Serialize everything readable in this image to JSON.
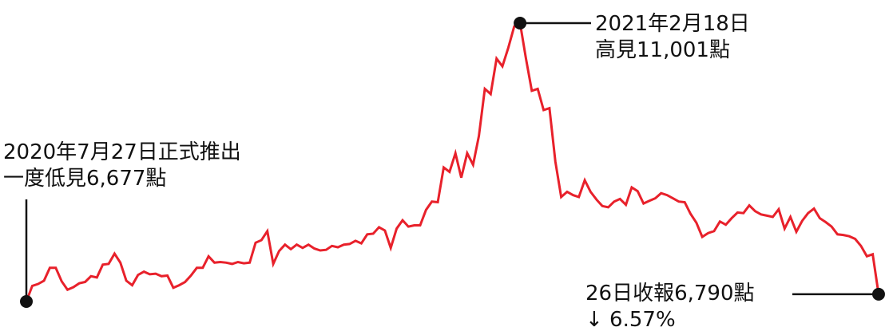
{
  "chart_data": {
    "type": "line",
    "annotations": {
      "start": {
        "line1": "2020年7月27日正式推出",
        "line2": "一度低見6,677點"
      },
      "peak": {
        "line1": "2021年2月18日",
        "line2": "高見11,001點"
      },
      "end": {
        "line1": "26日收報6,790點",
        "line2": "↓ 6.57%"
      }
    },
    "start_value": 6677,
    "peak_value": 11001,
    "end_value": 6790,
    "change_pct": -6.57,
    "ylim": [
      6600,
      11100
    ],
    "grid": false,
    "line_color": "#e8212b",
    "values": [
      6677,
      6920,
      6950,
      7000,
      7200,
      7200,
      6990,
      6860,
      6900,
      6960,
      6980,
      7070,
      7050,
      7250,
      7260,
      7420,
      7280,
      7000,
      6930,
      7090,
      7140,
      7100,
      7110,
      7070,
      7080,
      6890,
      6930,
      6980,
      7080,
      7200,
      7200,
      7380,
      7280,
      7290,
      7280,
      7260,
      7290,
      7270,
      7280,
      7590,
      7630,
      7770,
      7260,
      7460,
      7560,
      7490,
      7560,
      7510,
      7560,
      7500,
      7470,
      7480,
      7540,
      7520,
      7560,
      7570,
      7620,
      7580,
      7720,
      7730,
      7830,
      7780,
      7510,
      7810,
      7940,
      7840,
      7860,
      7860,
      8100,
      8230,
      8220,
      8760,
      8690,
      8980,
      8600,
      8980,
      8800,
      9250,
      9980,
      9900,
      10450,
      10330,
      10620,
      10950,
      11001,
      10450,
      9950,
      9980,
      9650,
      9680,
      8850,
      8300,
      8380,
      8330,
      8300,
      8560,
      8380,
      8260,
      8160,
      8140,
      8230,
      8270,
      8180,
      8450,
      8390,
      8200,
      8240,
      8280,
      8360,
      8330,
      8280,
      8230,
      8220,
      8040,
      7900,
      7680,
      7740,
      7770,
      7920,
      7870,
      7970,
      8060,
      8050,
      8170,
      8080,
      8030,
      8010,
      7990,
      8110,
      7810,
      7990,
      7760,
      7930,
      8050,
      8120,
      7970,
      7910,
      7840,
      7720,
      7710,
      7690,
      7650,
      7540,
      7380,
      7410,
      6790
    ]
  }
}
